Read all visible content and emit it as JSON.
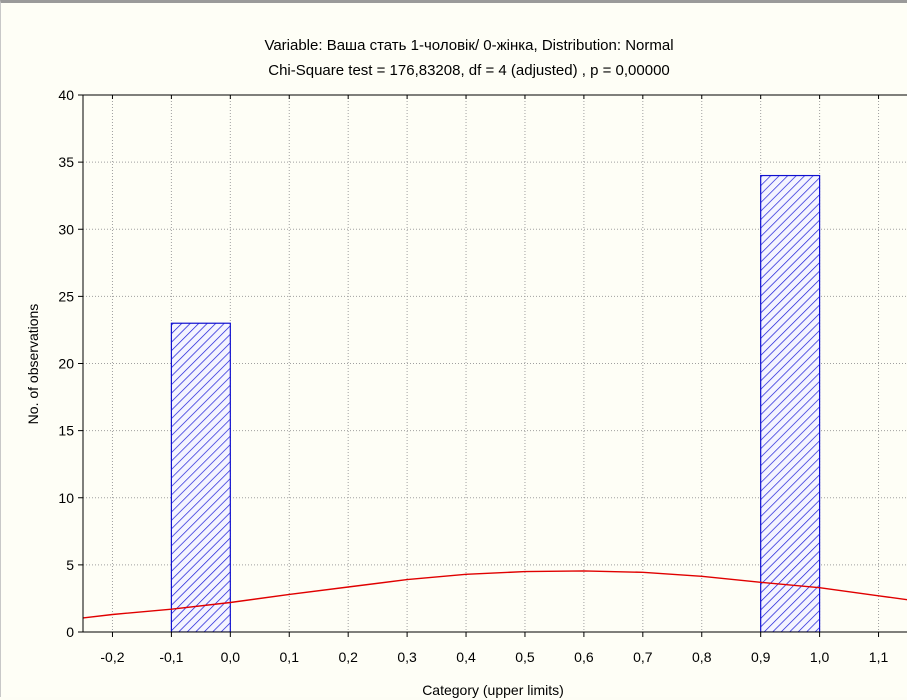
{
  "chart_data": {
    "type": "bar",
    "title": "Variable: Ваша стать  1-чоловік/ 0-жінка, Distribution: Normal",
    "subtitle": "Chi-Square test = 176,83208, df = 4 (adjusted) , p = 0,00000",
    "xlabel": "Category (upper limits)",
    "ylabel": "No. of observations",
    "xlim": [
      -0.25,
      1.15
    ],
    "ylim": [
      0,
      40
    ],
    "x_ticks": [
      -0.2,
      -0.1,
      0.0,
      0.1,
      0.2,
      0.3,
      0.4,
      0.5,
      0.6,
      0.7,
      0.8,
      0.9,
      1.0,
      1.1
    ],
    "x_tick_labels": [
      "-0,2",
      "-0,1",
      "0,0",
      "0,1",
      "0,2",
      "0,3",
      "0,4",
      "0,5",
      "0,6",
      "0,7",
      "0,8",
      "0,9",
      "1,0",
      "1,1"
    ],
    "y_ticks": [
      0,
      5,
      10,
      15,
      20,
      25,
      30,
      35,
      40
    ],
    "y_tick_labels": [
      "0",
      "5",
      "10",
      "15",
      "20",
      "25",
      "30",
      "35",
      "40"
    ],
    "bars": [
      {
        "lower": -0.1,
        "upper": 0.0,
        "value": 23
      },
      {
        "lower": 0.9,
        "upper": 1.0,
        "value": 34
      }
    ],
    "normal_curve": {
      "x": [
        -0.25,
        -0.2,
        -0.1,
        0.0,
        0.1,
        0.2,
        0.3,
        0.4,
        0.5,
        0.6,
        0.7,
        0.8,
        0.9,
        1.0,
        1.1,
        1.15
      ],
      "y": [
        1.05,
        1.3,
        1.7,
        2.2,
        2.8,
        3.35,
        3.9,
        4.3,
        4.5,
        4.55,
        4.45,
        4.15,
        3.7,
        3.3,
        2.7,
        2.4
      ]
    },
    "grid": true,
    "colors": {
      "bar_stroke": "#1010d0",
      "bar_hatch": "#1a1ad8",
      "bar_fill": "#f4f4ff",
      "curve": "#e00000",
      "grid": "#a0a0a0"
    }
  }
}
